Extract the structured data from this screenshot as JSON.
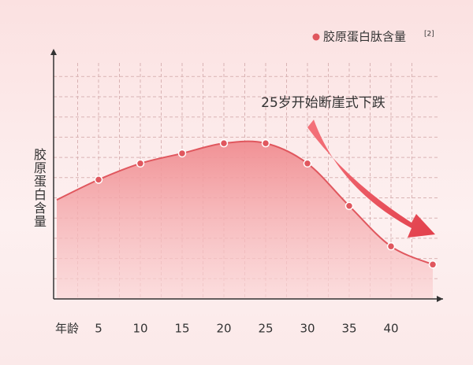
{
  "chart_data": {
    "type": "area",
    "annotation": "25岁开始断崖式下跌",
    "legend_note": "[2]",
    "xlabel": "年龄",
    "ylabel": "胶原蛋白含量",
    "x": [
      0,
      5,
      10,
      15,
      20,
      25,
      30,
      35,
      40,
      45
    ],
    "series": [
      {
        "name": "胶原蛋白肽含量",
        "color": "#e0575e",
        "values": [
          4.9,
          5.9,
          6.7,
          7.2,
          7.7,
          7.7,
          6.7,
          4.6,
          2.6,
          1.7
        ]
      }
    ],
    "xlim": [
      0,
      46
    ],
    "xticks": [
      5,
      10,
      15,
      20,
      25,
      30,
      35,
      40
    ],
    "ylim": [
      0,
      11.5
    ],
    "yticks": [
      1,
      2,
      3,
      4,
      5,
      6,
      7,
      8,
      9,
      10,
      11
    ],
    "grid": true
  }
}
